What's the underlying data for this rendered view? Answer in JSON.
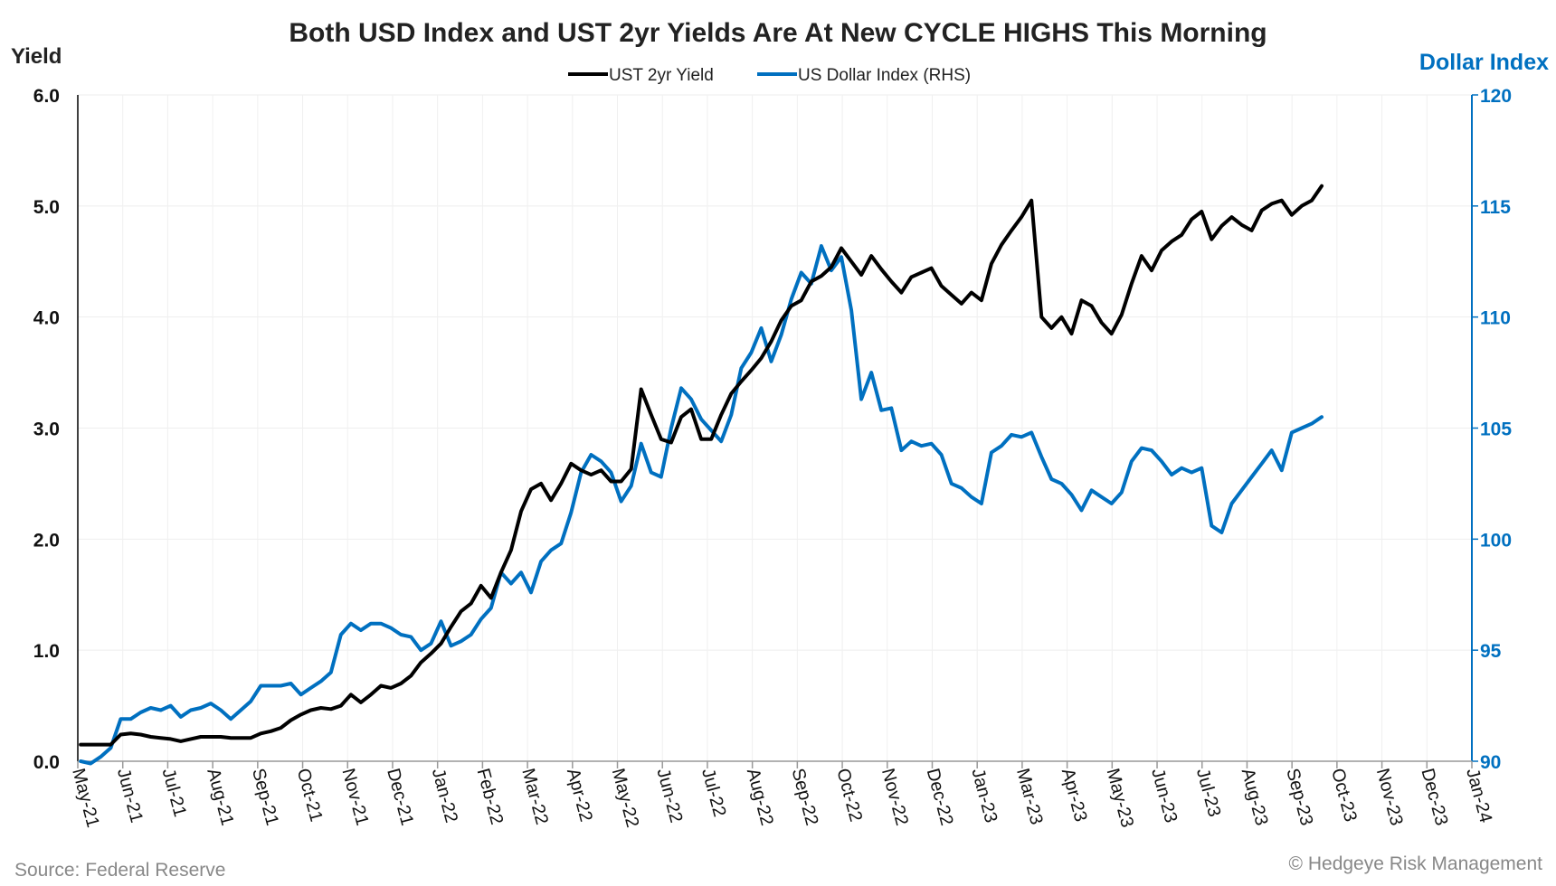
{
  "chart_data": {
    "type": "line",
    "title": "Both USD Index and UST 2yr Yields Are At New CYCLE HIGHS This Morning",
    "ylabel": "Yield",
    "ylabel_right": "Dollar Index",
    "ylim": [
      0,
      6
    ],
    "ylim_right": [
      90,
      120
    ],
    "yticks": [
      "0.0",
      "1.0",
      "2.0",
      "3.0",
      "4.0",
      "5.0",
      "6.0"
    ],
    "yticks_right": [
      "90",
      "95",
      "100",
      "105",
      "110",
      "115",
      "120"
    ],
    "xlim": [
      "2021-05-01",
      "2024-01-01"
    ],
    "xticks": [
      "May-21",
      "Jun-21",
      "Jul-21",
      "Aug-21",
      "Sep-21",
      "Oct-21",
      "Nov-21",
      "Dec-21",
      "Jan-22",
      "Feb-22",
      "Mar-22",
      "Apr-22",
      "May-22",
      "Jun-22",
      "Jul-22",
      "Aug-22",
      "Sep-22",
      "Oct-22",
      "Nov-22",
      "Dec-22",
      "Jan-23",
      "Mar-23",
      "Apr-23",
      "May-23",
      "Jun-23",
      "Jul-23",
      "Aug-23",
      "Sep-23",
      "Oct-23",
      "Nov-23",
      "Dec-23",
      "Jan-24"
    ],
    "grid": true,
    "legend_position": "top-center",
    "x": [
      "2021-05-03",
      "2021-05-10",
      "2021-05-17",
      "2021-05-24",
      "2021-05-31",
      "2021-06-07",
      "2021-06-14",
      "2021-06-21",
      "2021-06-28",
      "2021-07-05",
      "2021-07-12",
      "2021-07-19",
      "2021-07-26",
      "2021-08-02",
      "2021-08-09",
      "2021-08-16",
      "2021-08-23",
      "2021-08-30",
      "2021-09-06",
      "2021-09-13",
      "2021-09-20",
      "2021-09-27",
      "2021-10-04",
      "2021-10-11",
      "2021-10-18",
      "2021-10-25",
      "2021-11-01",
      "2021-11-08",
      "2021-11-15",
      "2021-11-22",
      "2021-11-29",
      "2021-12-06",
      "2021-12-13",
      "2021-12-20",
      "2021-12-27",
      "2022-01-03",
      "2022-01-10",
      "2022-01-17",
      "2022-01-24",
      "2022-01-31",
      "2022-02-07",
      "2022-02-14",
      "2022-02-21",
      "2022-02-28",
      "2022-03-07",
      "2022-03-14",
      "2022-03-21",
      "2022-03-28",
      "2022-04-04",
      "2022-04-11",
      "2022-04-18",
      "2022-04-25",
      "2022-05-02",
      "2022-05-09",
      "2022-05-16",
      "2022-05-23",
      "2022-05-30",
      "2022-06-06",
      "2022-06-13",
      "2022-06-20",
      "2022-06-27",
      "2022-07-04",
      "2022-07-11",
      "2022-07-18",
      "2022-07-25",
      "2022-08-01",
      "2022-08-08",
      "2022-08-15",
      "2022-08-22",
      "2022-08-29",
      "2022-09-05",
      "2022-09-12",
      "2022-09-19",
      "2022-09-26",
      "2022-10-03",
      "2022-10-10",
      "2022-10-17",
      "2022-10-24",
      "2022-10-31",
      "2022-11-07",
      "2022-11-14",
      "2022-11-21",
      "2022-11-28",
      "2022-12-05",
      "2022-12-12",
      "2022-12-19",
      "2022-12-26",
      "2023-01-02",
      "2023-01-09",
      "2023-01-16",
      "2023-01-23",
      "2023-01-30",
      "2023-02-06",
      "2023-02-13",
      "2023-02-20",
      "2023-02-27",
      "2023-03-06",
      "2023-03-13",
      "2023-03-20",
      "2023-03-27",
      "2023-04-03",
      "2023-04-10",
      "2023-04-17",
      "2023-04-24",
      "2023-05-01",
      "2023-05-08",
      "2023-05-15",
      "2023-05-22",
      "2023-05-29",
      "2023-06-05",
      "2023-06-12",
      "2023-06-19",
      "2023-06-26",
      "2023-07-03",
      "2023-07-10",
      "2023-07-17",
      "2023-07-24",
      "2023-07-31",
      "2023-08-07",
      "2023-08-14",
      "2023-08-21",
      "2023-08-28",
      "2023-09-04",
      "2023-09-11",
      "2023-09-18"
    ],
    "series": [
      {
        "name": "UST 2yr Yield",
        "axis": "left",
        "color": "#000000",
        "values": [
          0.15,
          0.15,
          0.15,
          0.15,
          0.24,
          0.25,
          0.24,
          0.22,
          0.21,
          0.2,
          0.18,
          0.2,
          0.22,
          0.22,
          0.22,
          0.21,
          0.21,
          0.21,
          0.25,
          0.27,
          0.3,
          0.37,
          0.42,
          0.46,
          0.48,
          0.47,
          0.5,
          0.6,
          0.53,
          0.6,
          0.68,
          0.66,
          0.7,
          0.77,
          0.89,
          0.97,
          1.06,
          1.21,
          1.35,
          1.42,
          1.58,
          1.47,
          1.7,
          1.9,
          2.25,
          2.45,
          2.5,
          2.35,
          2.5,
          2.68,
          2.62,
          2.58,
          2.62,
          2.52,
          2.52,
          2.63,
          3.35,
          3.12,
          2.9,
          2.87,
          3.1,
          3.17,
          2.9,
          2.9,
          3.12,
          3.31,
          3.42,
          3.52,
          3.63,
          3.78,
          3.97,
          4.1,
          4.15,
          4.32,
          4.37,
          4.45,
          4.62,
          4.5,
          4.38,
          4.55,
          4.43,
          4.32,
          4.22,
          4.36,
          4.4,
          4.44,
          4.28,
          4.2,
          4.12,
          4.22,
          4.15,
          4.48,
          4.65,
          4.78,
          4.9,
          5.05,
          4.0,
          3.9,
          4.0,
          3.85,
          4.15,
          4.1,
          3.95,
          3.85,
          4.02,
          4.3,
          4.55,
          4.42,
          4.6,
          4.68,
          4.74,
          4.88,
          4.95,
          4.7,
          4.82,
          4.9,
          4.83,
          4.78,
          4.96,
          5.02,
          5.05,
          4.92,
          5.0,
          5.05,
          5.18
        ]
      },
      {
        "name": "US Dollar Index (RHS)",
        "axis": "right",
        "color": "#0070C0",
        "values": [
          90.0,
          89.9,
          90.2,
          90.6,
          91.9,
          91.9,
          92.2,
          92.4,
          92.3,
          92.5,
          92.0,
          92.3,
          92.4,
          92.6,
          92.3,
          91.9,
          92.3,
          92.7,
          93.4,
          93.4,
          93.4,
          93.5,
          93.0,
          93.3,
          93.6,
          94.0,
          95.7,
          96.2,
          95.9,
          96.2,
          96.2,
          96.0,
          95.7,
          95.6,
          95.0,
          95.3,
          96.3,
          95.2,
          95.4,
          95.7,
          96.4,
          96.9,
          98.5,
          98.0,
          98.5,
          97.6,
          99.0,
          99.5,
          99.8,
          101.2,
          103.0,
          103.8,
          103.5,
          103.0,
          101.7,
          102.4,
          104.3,
          103.0,
          102.8,
          105.0,
          106.8,
          106.3,
          105.4,
          104.9,
          104.4,
          105.6,
          107.7,
          108.4,
          109.5,
          108.0,
          109.2,
          110.8,
          112.0,
          111.5,
          113.2,
          112.1,
          112.7,
          110.3,
          106.3,
          107.5,
          105.8,
          105.9,
          104.0,
          104.4,
          104.2,
          104.3,
          103.8,
          102.5,
          102.3,
          101.9,
          101.6,
          103.9,
          104.2,
          104.7,
          104.6,
          104.8,
          103.7,
          102.7,
          102.5,
          102.0,
          101.3,
          102.2,
          101.9,
          101.6,
          102.1,
          103.5,
          104.1,
          104.0,
          103.5,
          102.9,
          103.2,
          103.0,
          103.2,
          100.6,
          100.3,
          101.6,
          102.2,
          102.8,
          103.4,
          104.0,
          103.1,
          104.8,
          105.0,
          105.2,
          105.5
        ]
      }
    ]
  },
  "footer": {
    "source": "Source: Federal Reserve",
    "copyright": "© Hedgeye Risk Management"
  }
}
